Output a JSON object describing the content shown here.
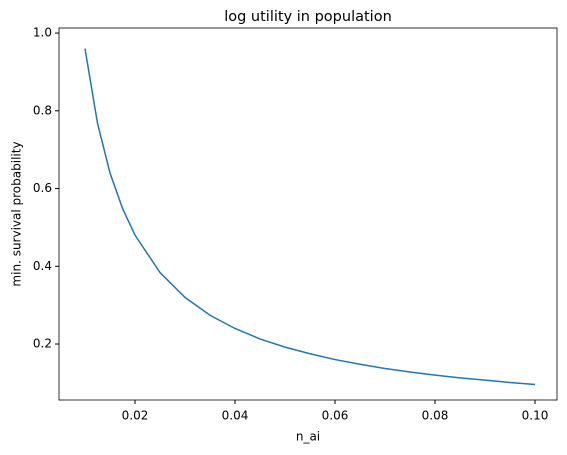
{
  "chart_data": {
    "type": "line",
    "title": "log utility in population",
    "xlabel": "n_ai",
    "ylabel": "min. survival probability",
    "x": [
      0.01,
      0.0125,
      0.015,
      0.0175,
      0.02,
      0.025,
      0.03,
      0.035,
      0.04,
      0.045,
      0.05,
      0.055,
      0.06,
      0.065,
      0.07,
      0.075,
      0.08,
      0.085,
      0.09,
      0.095,
      0.1
    ],
    "series": [
      {
        "color": "#1f77b4",
        "values": [
          0.96,
          0.768,
          0.64,
          0.549,
          0.48,
          0.384,
          0.32,
          0.274,
          0.24,
          0.213,
          0.192,
          0.175,
          0.16,
          0.148,
          0.137,
          0.128,
          0.12,
          0.113,
          0.107,
          0.101,
          0.096
        ]
      }
    ],
    "xlim": [
      0.0048,
      0.1044
    ],
    "ylim": [
      0.056,
      1.013
    ],
    "xticks": [
      0.02,
      0.04,
      0.06,
      0.08,
      {
        "value": 0.1,
        "label": "0.10"
      }
    ],
    "yticks": [
      0.2,
      0.4,
      0.6,
      0.8,
      {
        "value": 1,
        "label": "1.0"
      }
    ],
    "grid": false
  }
}
